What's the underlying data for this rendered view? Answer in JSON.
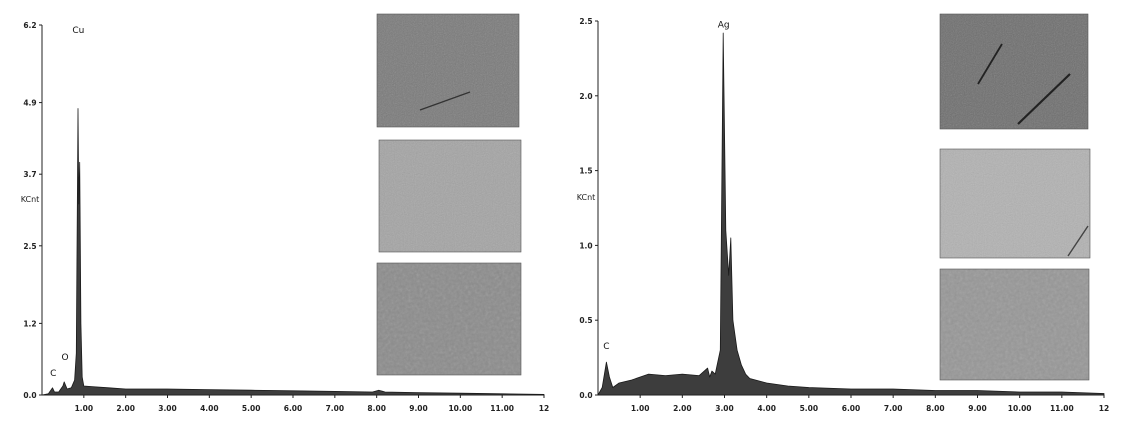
{
  "chart_data": [
    {
      "type": "area",
      "ylabel": "KCnt",
      "ylim": [
        0,
        6.2
      ],
      "xlim": [
        0,
        12
      ],
      "yticks": [
        {
          "v": 0,
          "label": "0.0"
        },
        {
          "v": 1.2,
          "label": "1.2"
        },
        {
          "v": 2.5,
          "label": "2.5"
        },
        {
          "v": 3.7,
          "label": "3.7"
        },
        {
          "v": 4.9,
          "label": "4.9"
        },
        {
          "v": 6.2,
          "label": "6.2"
        }
      ],
      "xticks": [
        {
          "v": 1,
          "label": "1.00"
        },
        {
          "v": 2,
          "label": "2.00"
        },
        {
          "v": 3,
          "label": "3.00"
        },
        {
          "v": 4,
          "label": "4.00"
        },
        {
          "v": 5,
          "label": "5.00"
        },
        {
          "v": 6,
          "label": "6.00"
        },
        {
          "v": 7,
          "label": "7.00"
        },
        {
          "v": 8,
          "label": "8.00"
        },
        {
          "v": 9,
          "label": "9.00"
        },
        {
          "v": 10,
          "label": "10.00"
        },
        {
          "v": 11,
          "label": "11.00"
        },
        {
          "v": 12,
          "label": "12"
        }
      ],
      "x": [
        0.0,
        0.15,
        0.25,
        0.3,
        0.4,
        0.5,
        0.53,
        0.6,
        0.7,
        0.78,
        0.82,
        0.86,
        0.88,
        0.9,
        0.93,
        0.96,
        1.0,
        1.2,
        1.6,
        2.0,
        3.0,
        4.0,
        5.0,
        6.0,
        7.0,
        7.9,
        8.05,
        8.2,
        9.0,
        10.0,
        11.0,
        12.0
      ],
      "counts": [
        0.0,
        0.02,
        0.12,
        0.05,
        0.05,
        0.15,
        0.22,
        0.1,
        0.12,
        0.25,
        0.7,
        4.8,
        3.2,
        3.9,
        1.2,
        0.3,
        0.15,
        0.14,
        0.12,
        0.1,
        0.1,
        0.09,
        0.08,
        0.07,
        0.06,
        0.05,
        0.08,
        0.05,
        0.04,
        0.03,
        0.02,
        0.01
      ],
      "peaks": [
        {
          "label": "C",
          "x": 0.27,
          "y": 0.25
        },
        {
          "label": "O",
          "x": 0.55,
          "y": 0.52
        },
        {
          "label": "Cu",
          "x": 0.87,
          "y": 6.0
        }
      ]
    },
    {
      "type": "area",
      "ylabel": "KCnt",
      "ylim": [
        0,
        2.5
      ],
      "xlim": [
        0,
        12
      ],
      "yticks": [
        {
          "v": 0,
          "label": "0.0"
        },
        {
          "v": 0.5,
          "label": "0.5"
        },
        {
          "v": 1.0,
          "label": "1.0"
        },
        {
          "v": 1.5,
          "label": "1.5"
        },
        {
          "v": 2.0,
          "label": "2.0"
        },
        {
          "v": 2.5,
          "label": "2.5"
        }
      ],
      "xticks": [
        {
          "v": 1,
          "label": "1.00"
        },
        {
          "v": 2,
          "label": "2.00"
        },
        {
          "v": 3,
          "label": "3.00"
        },
        {
          "v": 4,
          "label": "4.00"
        },
        {
          "v": 5,
          "label": "5.00"
        },
        {
          "v": 6,
          "label": "6.00"
        },
        {
          "v": 7,
          "label": "7.00"
        },
        {
          "v": 8,
          "label": "8.00"
        },
        {
          "v": 9,
          "label": "9.00"
        },
        {
          "v": 10,
          "label": "10.00"
        },
        {
          "v": 11,
          "label": "11.00"
        },
        {
          "v": 12,
          "label": "12"
        }
      ],
      "x": [
        0.0,
        0.1,
        0.2,
        0.27,
        0.35,
        0.5,
        0.8,
        1.2,
        1.6,
        2.0,
        2.4,
        2.6,
        2.65,
        2.7,
        2.78,
        2.9,
        2.97,
        3.03,
        3.1,
        3.15,
        3.2,
        3.3,
        3.4,
        3.5,
        3.6,
        4.0,
        4.5,
        5.0,
        6.0,
        7.0,
        8.0,
        9.0,
        10.0,
        11.0,
        12.0
      ],
      "counts": [
        0.0,
        0.05,
        0.22,
        0.12,
        0.05,
        0.08,
        0.1,
        0.14,
        0.13,
        0.14,
        0.13,
        0.18,
        0.12,
        0.16,
        0.14,
        0.3,
        2.42,
        1.1,
        0.8,
        1.05,
        0.5,
        0.3,
        0.2,
        0.14,
        0.11,
        0.08,
        0.06,
        0.05,
        0.04,
        0.04,
        0.03,
        0.03,
        0.02,
        0.02,
        0.01
      ],
      "peaks": [
        {
          "label": "C",
          "x": 0.2,
          "y": 0.28
        },
        {
          "label": "Ag",
          "x": 2.98,
          "y": 2.43
        }
      ]
    }
  ],
  "micrographs": [
    {
      "name": "micrograph-1",
      "base": "#7a7a7a"
    },
    {
      "name": "micrograph-2",
      "base": "#a4a4a4"
    },
    {
      "name": "micrograph-3",
      "base": "#8c8c8c"
    },
    {
      "name": "micrograph-4",
      "base": "#6e6e6e"
    },
    {
      "name": "micrograph-5",
      "base": "#b2b2b2"
    },
    {
      "name": "micrograph-6",
      "base": "#979797"
    }
  ]
}
